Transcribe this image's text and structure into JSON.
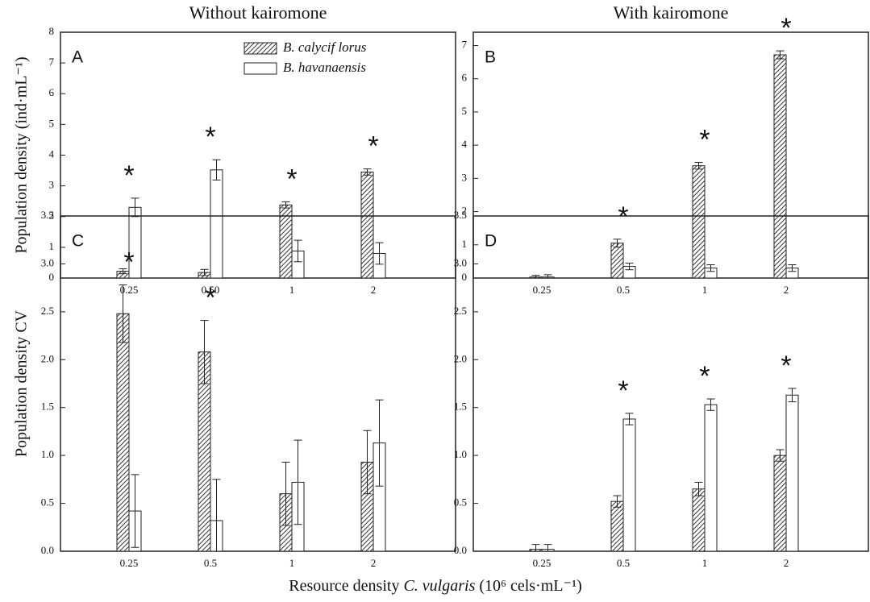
{
  "x_label": [
    "Resource density ",
    "C. vulgaris",
    " (10⁶ cels·mL⁻¹)"
  ],
  "chart_data": [
    {
      "type": "bar",
      "title": "Without kairomone",
      "panel_label": "A",
      "ylabel": "Population density (ind·mL⁻¹)",
      "categories": [
        "0.25",
        "0.50",
        "1",
        "2"
      ],
      "series": [
        {
          "name": "B. calycif lorus",
          "color": "#333333",
          "hatch": true,
          "values": [
            0.22,
            0.18,
            2.38,
            3.45
          ],
          "errors": [
            0.08,
            0.1,
            0.1,
            0.1
          ]
        },
        {
          "name": "B. havanaensis",
          "color": "#ffffff",
          "hatch": false,
          "values": [
            2.3,
            3.52,
            0.88,
            0.8
          ],
          "errors": [
            0.3,
            0.33,
            0.35,
            0.35
          ]
        }
      ],
      "significance": [
        "*",
        "*",
        "*",
        "*"
      ],
      "ylim": [
        0,
        8
      ],
      "yticks": [
        0,
        1,
        2,
        3,
        4,
        5,
        6,
        7,
        8
      ]
    },
    {
      "type": "bar",
      "title": "With kairomone",
      "panel_label": "B",
      "categories": [
        "0.25",
        "0.5",
        "1",
        "2"
      ],
      "series": [
        {
          "color": "#333333",
          "hatch": true,
          "values": [
            0.03,
            1.05,
            3.38,
            6.72
          ],
          "errors": [
            0.05,
            0.12,
            0.1,
            0.12
          ]
        },
        {
          "color": "#ffffff",
          "hatch": false,
          "values": [
            0.03,
            0.35,
            0.3,
            0.3
          ],
          "errors": [
            0.07,
            0.1,
            0.1,
            0.1
          ]
        }
      ],
      "significance": [
        null,
        "*",
        "*",
        "*"
      ],
      "ylim": [
        0,
        7.4
      ],
      "yticks": [
        0,
        1,
        2,
        3,
        4,
        5,
        6,
        7
      ]
    },
    {
      "type": "bar",
      "panel_label": "C",
      "ylabel": "Population density CV",
      "categories": [
        "0.25",
        "0.5",
        "1",
        "2"
      ],
      "series": [
        {
          "color": "#333333",
          "hatch": true,
          "values": [
            2.48,
            2.08,
            0.6,
            0.93
          ],
          "errors": [
            0.3,
            0.33,
            0.33,
            0.33
          ]
        },
        {
          "color": "#ffffff",
          "hatch": false,
          "values": [
            0.42,
            0.32,
            0.72,
            1.13
          ],
          "errors": [
            0.38,
            0.43,
            0.44,
            0.45
          ]
        }
      ],
      "significance": [
        "*",
        "*",
        null,
        null
      ],
      "ylim": [
        0,
        3.5
      ],
      "yticks": [
        {
          "value": 0,
          "label": "0.0"
        },
        0.5,
        {
          "value": 1,
          "label": "1.0"
        },
        1.5,
        {
          "value": 2,
          "label": "2.0"
        },
        2.5,
        {
          "value": 3,
          "label": "3.0"
        },
        3.5
      ]
    },
    {
      "type": "bar",
      "panel_label": "D",
      "categories": [
        "0.25",
        "0.5",
        "1",
        "2"
      ],
      "series": [
        {
          "color": "#333333",
          "hatch": true,
          "values": [
            0.02,
            0.52,
            0.65,
            1.0
          ],
          "errors": [
            0.05,
            0.06,
            0.07,
            0.06
          ]
        },
        {
          "color": "#ffffff",
          "hatch": false,
          "values": [
            0.02,
            1.38,
            1.53,
            1.63
          ],
          "errors": [
            0.05,
            0.06,
            0.06,
            0.07
          ]
        }
      ],
      "significance": [
        null,
        "*",
        "*",
        "*"
      ],
      "ylim": [
        0,
        3.5
      ],
      "yticks": [
        {
          "value": 0,
          "label": "0.0"
        },
        0.5,
        {
          "value": 1,
          "label": "1.0"
        },
        1.5,
        {
          "value": 2,
          "label": "2.0"
        },
        2.5,
        {
          "value": 3,
          "label": "3.0"
        },
        3.5
      ]
    }
  ]
}
